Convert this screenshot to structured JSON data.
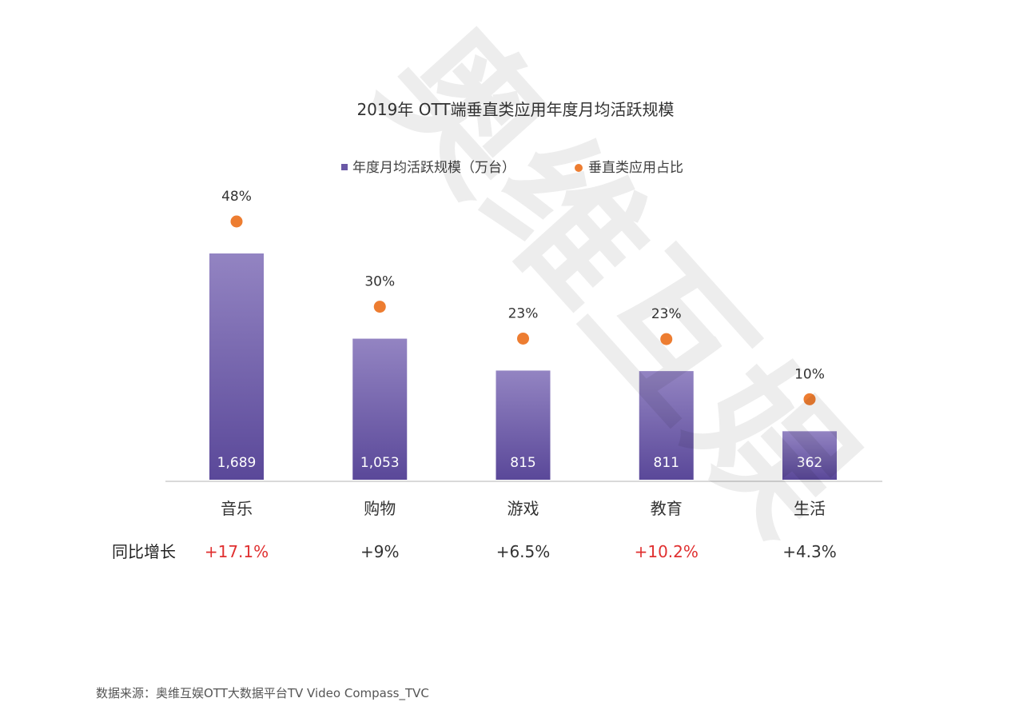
{
  "chart_data": {
    "type": "bar",
    "title": "2019年 OTT端垂直类应用年度月均活跃规模",
    "categories": [
      "音乐",
      "购物",
      "游戏",
      "教育",
      "生活"
    ],
    "series": [
      {
        "name": "年度月均活跃规模（万台）",
        "type": "bar",
        "color": "#6a58a6",
        "values": [
          1689,
          1053,
          815,
          811,
          362
        ],
        "labels": [
          "1,689",
          "1,053",
          "815",
          "811",
          "362"
        ]
      },
      {
        "name": "垂直类应用占比",
        "type": "dot",
        "color": "#ed7d31",
        "values": [
          48,
          30,
          23,
          23,
          10
        ],
        "labels": [
          "48%",
          "30%",
          "23%",
          "23%",
          "10%"
        ]
      }
    ],
    "growth": {
      "label": "同比增长",
      "values": [
        "+17.1%",
        "+9%",
        "+6.5%",
        "+10.2%",
        "+4.3%"
      ],
      "highlight": [
        true,
        false,
        false,
        true,
        false
      ],
      "highlight_color": "#e03030"
    },
    "ylim": [
      0,
      1800
    ],
    "legend_position": "top-center",
    "grid": false
  },
  "source": "数据来源：奥维互娱OTT大数据平台TV Video Compass_TVC",
  "watermark": "奥维互娱"
}
